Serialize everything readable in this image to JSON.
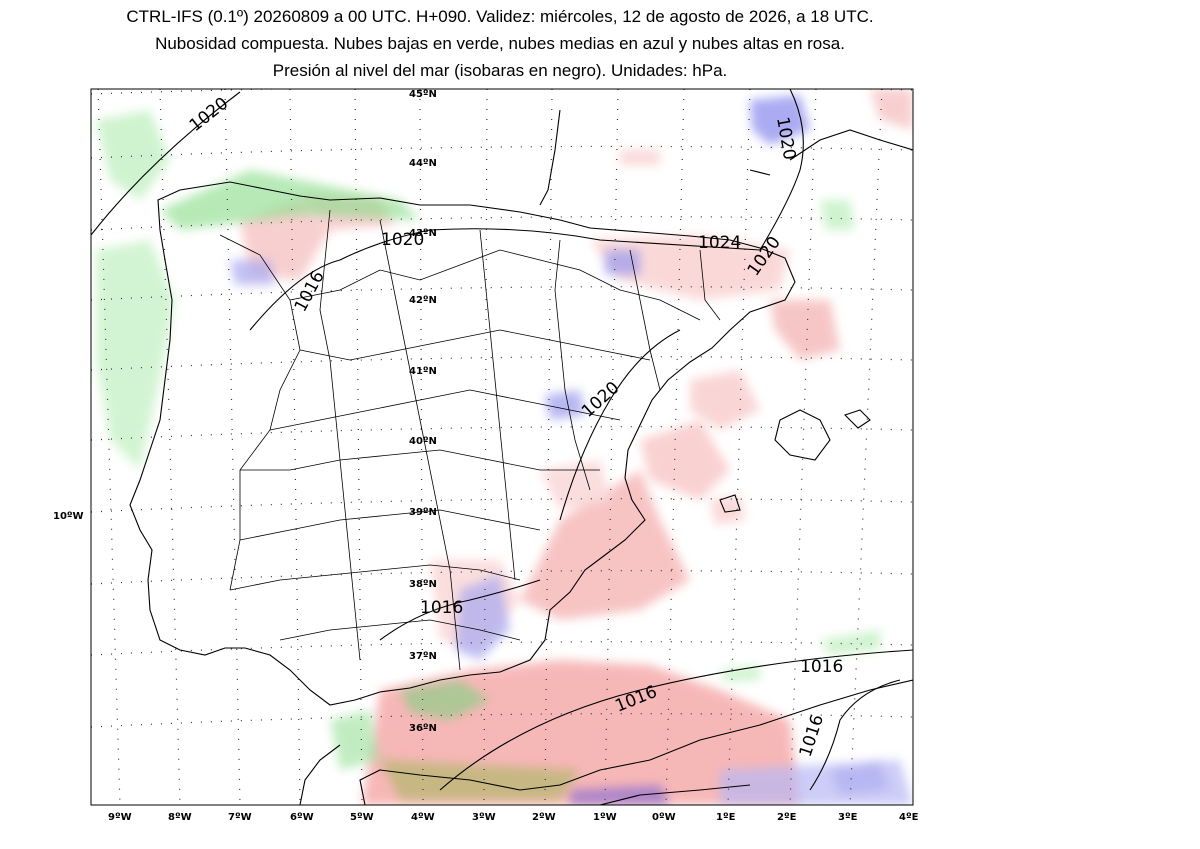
{
  "header": {
    "line1": "CTRL-IFS (0.1º) 20260809 a 00 UTC. H+090. Validez: miércoles, 12 de agosto de 2026, a 18 UTC.",
    "line2": "Nubosidad compuesta. Nubes bajas en verde, nubes medias en azul y nubes altas en rosa.",
    "line3": "Presión al nivel del mar (isobaras en negro). Unidades: hPa."
  },
  "map": {
    "lon_labels": [
      "9ºW",
      "8ºW",
      "7ºW",
      "6ºW",
      "5ºW",
      "4ºW",
      "3ºW",
      "2ºW",
      "1ºW",
      "0ºW",
      "1ºE",
      "2ºE",
      "3ºE",
      "4ºE"
    ],
    "lat_labels": [
      "45ºN",
      "44ºN",
      "43ºN",
      "42ºN",
      "41ºN",
      "40ºN",
      "39ºN",
      "38ºN",
      "37ºN",
      "36ºN"
    ],
    "west_label": "10ºW",
    "isobar_labels": [
      "1020",
      "1020",
      "1016",
      "1024",
      "1020",
      "1020",
      "1020",
      "1016",
      "1016",
      "1016",
      "1016"
    ],
    "colors": {
      "low_clouds": "#88e088",
      "mid_clouds": "#9a9aee",
      "high_clouds": "#f29a9a",
      "isobars": "#000000"
    }
  }
}
